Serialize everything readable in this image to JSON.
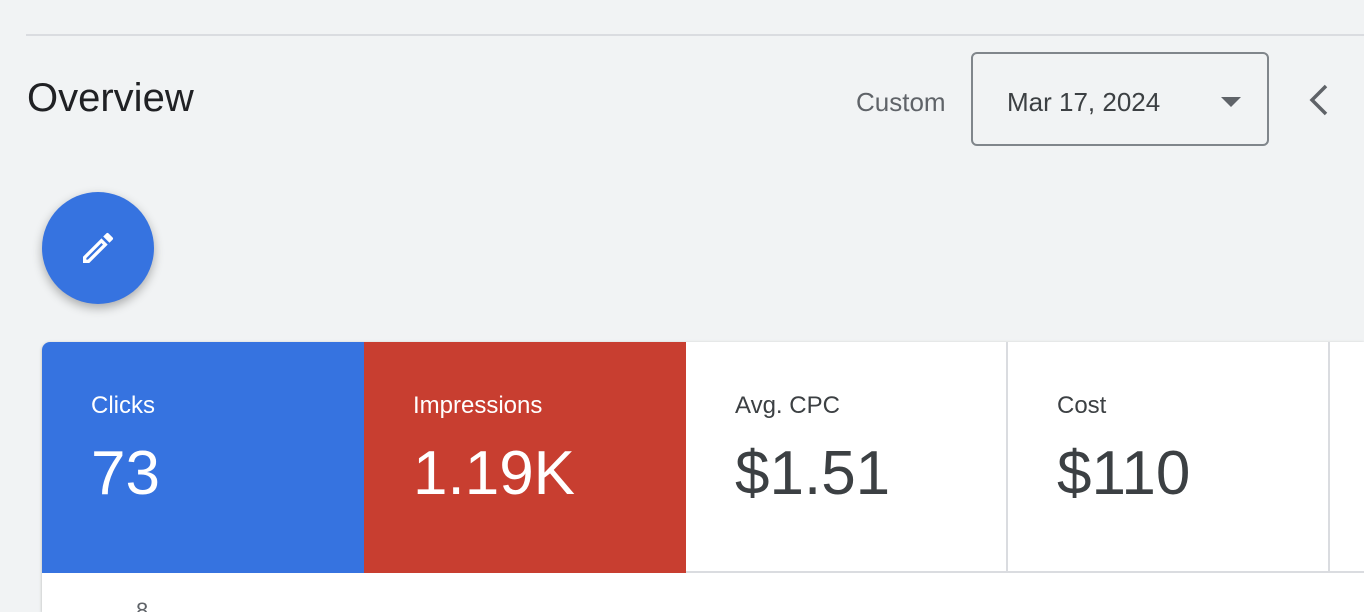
{
  "header": {
    "title": "Overview"
  },
  "date_range": {
    "preset": "Custom",
    "selected": "Mar 17, 2024"
  },
  "icons": {
    "edit": "pencil-icon",
    "dropdown": "caret-down-icon",
    "previous": "chevron-left-icon"
  },
  "colors": {
    "clicks": "#3673e0",
    "impressions": "#c83e30",
    "fab": "#3673e0"
  },
  "metrics": [
    {
      "label": "Clicks",
      "value": "73"
    },
    {
      "label": "Impressions",
      "value": "1.19K"
    },
    {
      "label": "Avg. CPC",
      "value": "$1.51"
    },
    {
      "label": "Cost",
      "value": "$110"
    }
  ],
  "chart": {
    "first_y_tick": "8"
  }
}
